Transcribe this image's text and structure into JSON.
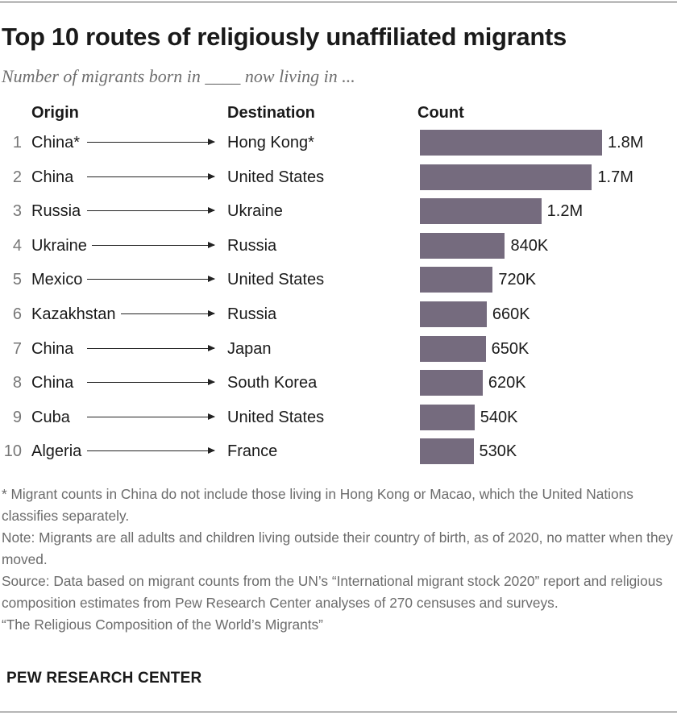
{
  "chart_data": {
    "type": "bar",
    "orientation": "horizontal",
    "title": "Top 10 routes of religiously unaffiliated migrants",
    "subtitle": "Number of migrants born in ____ now living in ...",
    "headers": {
      "origin": "Origin",
      "destination": "Destination",
      "count": "Count"
    },
    "xlim": [
      0,
      1800000
    ],
    "rows": [
      {
        "rank": "1",
        "origin": "China*",
        "destination": "Hong Kong*",
        "value": 1800000,
        "label": "1.8M"
      },
      {
        "rank": "2",
        "origin": "China",
        "destination": "United States",
        "value": 1700000,
        "label": "1.7M"
      },
      {
        "rank": "3",
        "origin": "Russia",
        "destination": "Ukraine",
        "value": 1200000,
        "label": "1.2M"
      },
      {
        "rank": "4",
        "origin": "Ukraine",
        "destination": "Russia",
        "value": 840000,
        "label": "840K"
      },
      {
        "rank": "5",
        "origin": "Mexico",
        "destination": "United States",
        "value": 720000,
        "label": "720K"
      },
      {
        "rank": "6",
        "origin": "Kazakhstan",
        "destination": "Russia",
        "value": 660000,
        "label": "660K"
      },
      {
        "rank": "7",
        "origin": "China",
        "destination": "Japan",
        "value": 650000,
        "label": "650K"
      },
      {
        "rank": "8",
        "origin": "China",
        "destination": "South Korea",
        "value": 620000,
        "label": "620K"
      },
      {
        "rank": "9",
        "origin": "Cuba",
        "destination": "United States",
        "value": 540000,
        "label": "540K"
      },
      {
        "rank": "10",
        "origin": "Algeria",
        "destination": "France",
        "value": 530000,
        "label": "530K"
      }
    ],
    "bar_color": "#756b7e"
  },
  "notes": {
    "footnote": "* Migrant counts in China do not include those living in Hong Kong or Macao, which the United Nations classifies separately.",
    "note": "Note: Migrants are all adults and children living outside their country of birth, as of 2020, no matter when they moved.",
    "source": "Source: Data based on migrant counts from the UN’s “International migrant stock 2020” report and religious composition estimates from Pew Research Center analyses of 270 censuses and surveys.",
    "report": "“The Religious Composition of the World’s Migrants”"
  },
  "brand": "PEW RESEARCH CENTER"
}
